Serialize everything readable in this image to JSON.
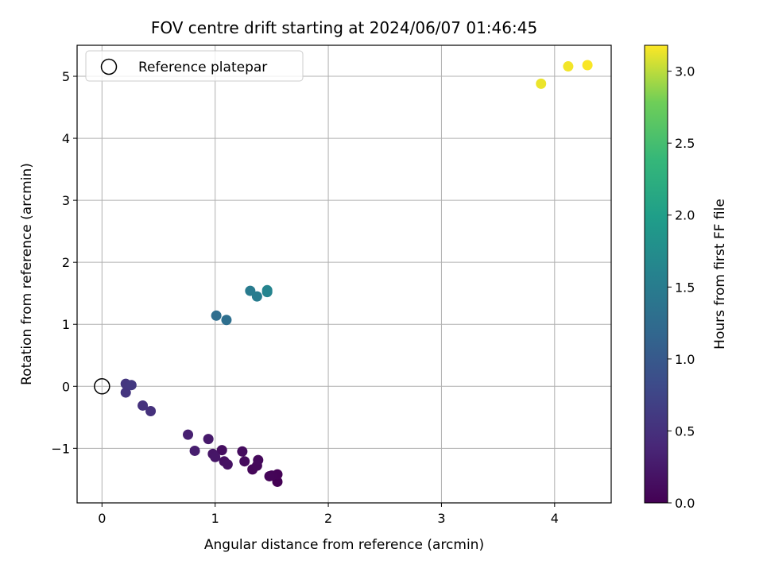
{
  "chart_data": {
    "type": "scatter",
    "title": "FOV centre drift starting at 2024/06/07 01:46:45",
    "xlabel": "Angular distance from reference (arcmin)",
    "ylabel": "Rotation from reference (arcmin)",
    "xlim": [
      -0.22,
      4.5
    ],
    "ylim": [
      -1.88,
      5.5
    ],
    "xticks": [
      0,
      1,
      2,
      3,
      4
    ],
    "yticks": [
      -1,
      0,
      1,
      2,
      3,
      4,
      5
    ],
    "grid": true,
    "legend": {
      "position": "top-left",
      "entries": [
        "Reference platepar"
      ]
    },
    "reference_point": {
      "x": 0,
      "y": 0
    },
    "colorbar": {
      "label": "Hours from first FF file",
      "min": 0.0,
      "max": 3.18,
      "ticks": [
        "0.0",
        "0.5",
        "1.0",
        "1.5",
        "2.0",
        "2.5",
        "3.0"
      ],
      "colormap": "viridis"
    },
    "points": [
      {
        "x": 1.55,
        "y": -1.54,
        "h": 0.0
      },
      {
        "x": 1.55,
        "y": -1.42,
        "h": 0.02
      },
      {
        "x": 1.5,
        "y": -1.44,
        "h": 0.03
      },
      {
        "x": 1.48,
        "y": -1.45,
        "h": 0.04
      },
      {
        "x": 1.33,
        "y": -1.34,
        "h": 0.06
      },
      {
        "x": 1.37,
        "y": -1.28,
        "h": 0.07
      },
      {
        "x": 1.38,
        "y": -1.19,
        "h": 0.08
      },
      {
        "x": 1.26,
        "y": -1.21,
        "h": 0.1
      },
      {
        "x": 1.24,
        "y": -1.05,
        "h": 0.11
      },
      {
        "x": 1.06,
        "y": -1.03,
        "h": 0.13
      },
      {
        "x": 1.08,
        "y": -1.21,
        "h": 0.15
      },
      {
        "x": 1.11,
        "y": -1.26,
        "h": 0.17
      },
      {
        "x": 0.98,
        "y": -1.09,
        "h": 0.2
      },
      {
        "x": 1.0,
        "y": -1.14,
        "h": 0.21
      },
      {
        "x": 0.94,
        "y": -0.85,
        "h": 0.25
      },
      {
        "x": 0.82,
        "y": -1.04,
        "h": 0.3
      },
      {
        "x": 0.76,
        "y": -0.78,
        "h": 0.32
      },
      {
        "x": 0.43,
        "y": -0.4,
        "h": 0.5
      },
      {
        "x": 0.36,
        "y": -0.31,
        "h": 0.52
      },
      {
        "x": 0.21,
        "y": -0.1,
        "h": 0.55
      },
      {
        "x": 0.21,
        "y": 0.04,
        "h": 0.57
      },
      {
        "x": 0.26,
        "y": 0.02,
        "h": 0.59
      },
      {
        "x": 1.01,
        "y": 1.14,
        "h": 1.28
      },
      {
        "x": 1.1,
        "y": 1.07,
        "h": 1.3
      },
      {
        "x": 1.31,
        "y": 1.54,
        "h": 1.48
      },
      {
        "x": 1.37,
        "y": 1.45,
        "h": 1.5
      },
      {
        "x": 1.46,
        "y": 1.52,
        "h": 1.6
      },
      {
        "x": 1.46,
        "y": 1.55,
        "h": 1.62
      },
      {
        "x": 3.88,
        "y": 4.88,
        "h": 3.13
      },
      {
        "x": 4.12,
        "y": 5.16,
        "h": 3.15
      },
      {
        "x": 4.29,
        "y": 5.18,
        "h": 3.17
      }
    ]
  }
}
